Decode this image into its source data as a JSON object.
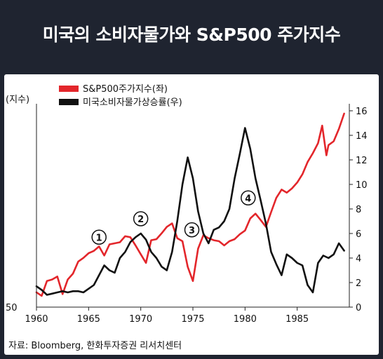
{
  "header": {
    "title": "미국의 소비자물가와 S&P500 주가지수"
  },
  "source": "자료: Bloomberg, 한화투자증권 리서치센터",
  "colors": {
    "sp500": "#e3262b",
    "cpi": "#111111",
    "background_header": "#1f2430"
  },
  "chart_data": {
    "type": "line",
    "title": "",
    "x_ticks": [
      "1960",
      "1965",
      "1970",
      "1975",
      "1980",
      "1985"
    ],
    "xlim": [
      1960,
      1990
    ],
    "y_left": {
      "label": "(지수)",
      "tick_labels": [
        "50"
      ],
      "scale": "log"
    },
    "y_right": {
      "ticks": [
        "0",
        "2",
        "4",
        "6",
        "8",
        "10",
        "12",
        "14",
        "16"
      ],
      "ylim": [
        0,
        16
      ]
    },
    "legend_position": "top-left",
    "annotations": [
      {
        "label": "①",
        "x": 1966.0,
        "y": 5.7
      },
      {
        "label": "②",
        "x": 1970.0,
        "y": 7.2
      },
      {
        "label": "③",
        "x": 1974.9,
        "y": 6.3
      },
      {
        "label": "④",
        "x": 1980.3,
        "y": 8.9
      }
    ],
    "series": [
      {
        "name": "S&P500주가지수(좌)",
        "axis": "left",
        "x": [
          1960,
          1960.5,
          1961,
          1961.5,
          1962,
          1962.5,
          1963,
          1963.5,
          1964,
          1964.5,
          1965,
          1965.5,
          1966,
          1966.5,
          1967,
          1967.5,
          1968,
          1968.5,
          1969,
          1969.5,
          1970,
          1970.5,
          1971,
          1971.5,
          1972,
          1972.5,
          1973,
          1973.5,
          1974,
          1974.5,
          1975,
          1975.5,
          1976,
          1976.5,
          1977,
          1977.5,
          1978,
          1978.5,
          1979,
          1979.5,
          1980,
          1980.5,
          1981,
          1981.5,
          1982,
          1982.5,
          1983,
          1983.5,
          1984,
          1984.5,
          1985,
          1985.5,
          1986,
          1986.5,
          1987,
          1987.4,
          1987.8,
          1988,
          1988.5,
          1989,
          1989.5
        ],
        "values": [
          58,
          56,
          65,
          66,
          68,
          57,
          66,
          70,
          79,
          82,
          86,
          88,
          92,
          84,
          94,
          95,
          96,
          102,
          101,
          93,
          85,
          78,
          98,
          99,
          105,
          112,
          116,
          100,
          97,
          75,
          65,
          90,
          103,
          100,
          98,
          97,
          93,
          97,
          99,
          104,
          108,
          122,
          128,
          120,
          112,
          130,
          150,
          163,
          158,
          165,
          175,
          190,
          215,
          235,
          260,
          310,
          230,
          255,
          265,
          300,
          350
        ]
      },
      {
        "name": "미국소비자물가상승률(우)",
        "axis": "right",
        "x": [
          1960,
          1960.5,
          1961,
          1961.5,
          1962,
          1962.5,
          1963,
          1963.5,
          1964,
          1964.5,
          1965,
          1965.5,
          1966,
          1966.5,
          1967,
          1967.5,
          1968,
          1968.5,
          1969,
          1969.5,
          1970,
          1970.5,
          1971,
          1971.5,
          1972,
          1972.5,
          1973,
          1973.5,
          1974,
          1974.5,
          1975,
          1975.5,
          1976,
          1976.5,
          1977,
          1977.5,
          1978,
          1978.5,
          1979,
          1979.5,
          1980,
          1980.5,
          1981,
          1981.5,
          1982,
          1982.5,
          1983,
          1983.5,
          1984,
          1984.5,
          1985,
          1985.5,
          1986,
          1986.5,
          1987,
          1987.5,
          1988,
          1988.5,
          1989,
          1989.5
        ],
        "values": [
          1.7,
          1.4,
          1.0,
          1.1,
          1.2,
          1.3,
          1.2,
          1.3,
          1.3,
          1.2,
          1.5,
          1.8,
          2.6,
          3.4,
          3.0,
          2.8,
          4.0,
          4.5,
          5.3,
          5.7,
          6.0,
          5.5,
          4.5,
          4.0,
          3.3,
          3.0,
          4.5,
          7.0,
          10.0,
          12.2,
          10.5,
          7.8,
          6.0,
          5.2,
          6.3,
          6.5,
          7.0,
          8.0,
          10.5,
          12.5,
          14.6,
          12.9,
          10.5,
          8.7,
          6.8,
          4.5,
          3.5,
          2.6,
          4.3,
          4.0,
          3.6,
          3.4,
          1.8,
          1.2,
          3.6,
          4.2,
          4.0,
          4.3,
          5.2,
          4.6
        ]
      }
    ]
  }
}
